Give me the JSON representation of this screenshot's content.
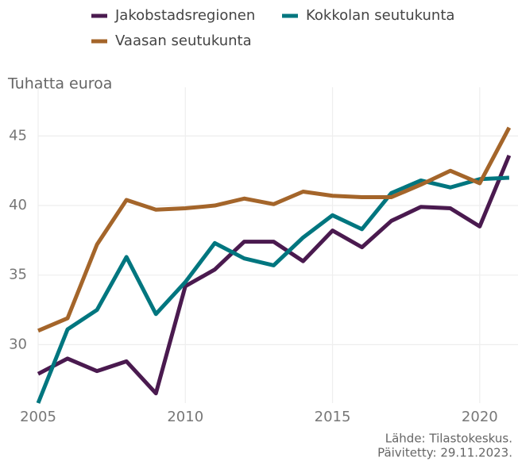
{
  "chart_data": {
    "type": "line",
    "y_label": "Tuhatta euroa",
    "source": "Lähde: Tilastokeskus.",
    "updated": "Päivitetty: 29.11.2023.",
    "x": [
      2005,
      2006,
      2007,
      2008,
      2009,
      2010,
      2011,
      2012,
      2013,
      2014,
      2015,
      2016,
      2017,
      2018,
      2019,
      2020,
      2021
    ],
    "series": [
      {
        "name": "Jakobstadsregionen",
        "color": "#4a1a4f",
        "values": [
          27.9,
          29.0,
          28.1,
          28.8,
          26.5,
          34.2,
          35.4,
          37.4,
          37.4,
          36.0,
          38.2,
          37.0,
          38.9,
          39.9,
          39.8,
          38.5,
          43.6
        ]
      },
      {
        "name": "Kokkolan seutukunta",
        "color": "#00767f",
        "values": [
          25.8,
          31.1,
          32.5,
          36.3,
          32.2,
          34.5,
          37.3,
          36.2,
          35.7,
          37.7,
          39.3,
          38.3,
          40.9,
          41.8,
          41.3,
          41.9,
          42.0
        ]
      },
      {
        "name": "Vaasan seutukunta",
        "color": "#a4652a",
        "values": [
          31.0,
          31.9,
          37.2,
          40.4,
          39.7,
          39.8,
          40.0,
          40.5,
          40.1,
          41.0,
          40.7,
          40.6,
          40.6,
          41.5,
          42.5,
          41.6,
          45.6
        ]
      }
    ],
    "xlim": [
      2005,
      2021.3
    ],
    "xticks": [
      2005,
      2010,
      2015,
      2020
    ],
    "ylim": [
      25.8,
      48.5
    ],
    "yticks": [
      30,
      35,
      40,
      45
    ],
    "grid": true
  }
}
